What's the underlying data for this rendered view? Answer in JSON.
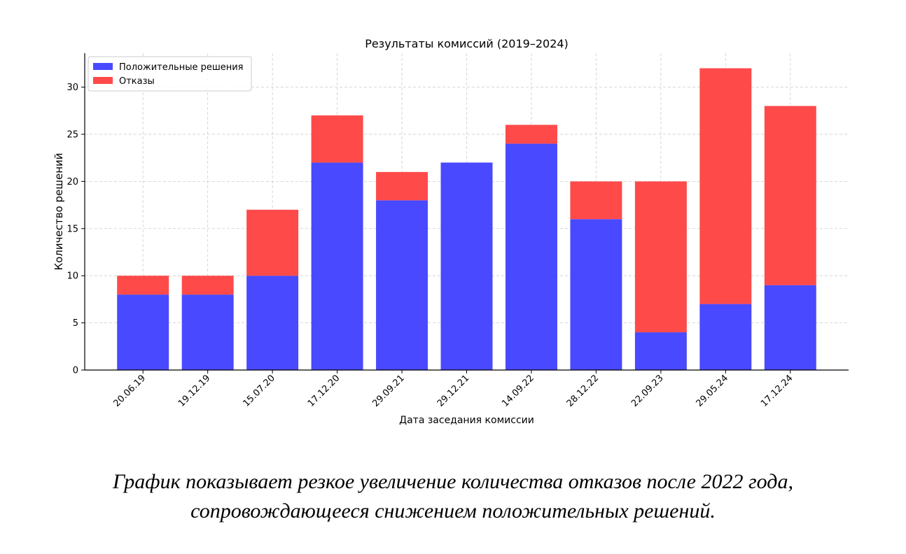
{
  "chart_data": {
    "type": "bar",
    "stacked": true,
    "title": "Результаты комиссий (2019–2024)",
    "xlabel": "Дата заседания комиссии",
    "ylabel": "Количество решений",
    "categories": [
      "20.06.19",
      "19.12.19",
      "15.07.20",
      "17.12.20",
      "29.09.21",
      "29.12.21",
      "14.09.22",
      "28.12.22",
      "22.09.23",
      "29.05.24",
      "17.12.24"
    ],
    "series": [
      {
        "name": "Положительные решения",
        "color": "#4949ff",
        "values": [
          8,
          8,
          10,
          22,
          18,
          22,
          24,
          16,
          4,
          7,
          9
        ]
      },
      {
        "name": "Отказы",
        "color": "#ff4a4a",
        "values": [
          2,
          2,
          7,
          5,
          3,
          0,
          2,
          4,
          16,
          25,
          19
        ]
      }
    ],
    "yticks": [
      0,
      5,
      10,
      15,
      20,
      25,
      30
    ],
    "ylim": [
      0,
      33.6
    ],
    "grid": true,
    "legend_position": "top-left"
  },
  "caption": {
    "line1": "График показывает резкое увеличение количества отказов после 2022 года,",
    "line2": "сопровождающееся снижением положительных решений."
  }
}
